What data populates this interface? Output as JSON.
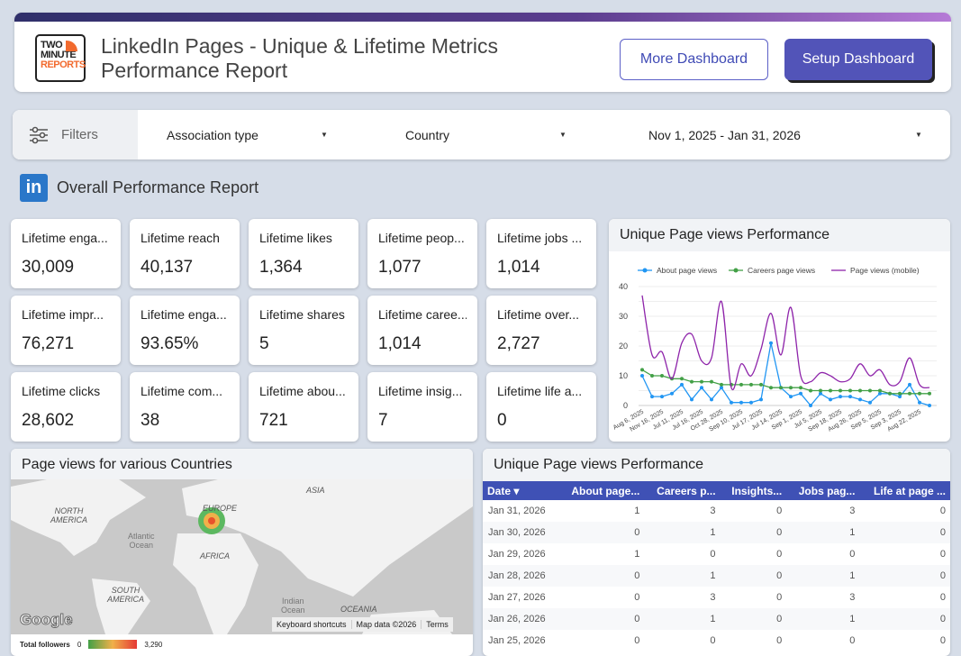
{
  "header": {
    "logo_lines": [
      "TWO",
      "MINUTE",
      "REPORTS"
    ],
    "title_line1": "LinkedIn Pages - Unique & Lifetime Metrics",
    "title_line2": "Performance Report",
    "more_label": "More Dashboard",
    "setup_label": "Setup Dashboard"
  },
  "filters": {
    "label": "Filters",
    "association": "Association type",
    "country": "Country",
    "date_range": "Nov 1, 2025 - Jan 31, 2026"
  },
  "section": {
    "icon": "linkedin-icon",
    "icon_text": "in",
    "title": "Overall Performance Report"
  },
  "kpis": [
    {
      "label": "Lifetime enga...",
      "value": "30,009"
    },
    {
      "label": "Lifetime reach",
      "value": "40,137"
    },
    {
      "label": "Lifetime likes",
      "value": "1,364"
    },
    {
      "label": "Lifetime peop...",
      "value": "1,077"
    },
    {
      "label": "Lifetime jobs ...",
      "value": "1,014"
    },
    {
      "label": "Lifetime impr...",
      "value": "76,271"
    },
    {
      "label": "Lifetime enga...",
      "value": "93.65%"
    },
    {
      "label": "Lifetime shares",
      "value": "5"
    },
    {
      "label": "Lifetime caree...",
      "value": "1,014"
    },
    {
      "label": "Lifetime over...",
      "value": "2,727"
    },
    {
      "label": "Lifetime clicks",
      "value": "28,602"
    },
    {
      "label": "Lifetime com...",
      "value": "38"
    },
    {
      "label": "Lifetime abou...",
      "value": "721"
    },
    {
      "label": "Lifetime insig...",
      "value": "7"
    },
    {
      "label": "Lifetime life a...",
      "value": "0"
    }
  ],
  "chart_data": {
    "type": "line",
    "title": "Unique Page views Performance",
    "ylim": [
      0,
      40
    ],
    "yticks": [
      0,
      10,
      20,
      30,
      40
    ],
    "grid": true,
    "legend": "top",
    "x_labels": [
      "Aug 6, 2025",
      "Nov 16, 2025",
      "Jul 11, 2025",
      "Jul 16, 2025",
      "Oct 28, 2025",
      "Sep 10, 2025",
      "Jul 17, 2025",
      "Jul 14, 2025",
      "Sep 1, 2025",
      "Jul 5, 2025",
      "Sep 18, 2025",
      "Aug 26, 2025",
      "Sep 5, 2025",
      "Sep 3, 2025",
      "Aug 22, 2025"
    ],
    "series": [
      {
        "name": "About page views",
        "color": "#2196f3",
        "markers": true,
        "values": [
          10,
          3,
          3,
          4,
          7,
          2,
          6,
          2,
          6,
          1,
          1,
          1,
          2,
          21,
          6,
          3,
          4,
          0,
          4,
          2,
          3,
          3,
          2,
          1,
          4,
          4,
          3,
          7,
          1,
          0
        ]
      },
      {
        "name": "Careers page views",
        "color": "#43a047",
        "markers": true,
        "values": [
          12,
          10,
          10,
          9,
          9,
          8,
          8,
          8,
          7,
          7,
          7,
          7,
          7,
          6,
          6,
          6,
          6,
          5,
          5,
          5,
          5,
          5,
          5,
          5,
          5,
          4,
          4,
          4,
          4,
          4
        ]
      },
      {
        "name": "Page views (mobile)",
        "color": "#8e24aa",
        "markers": false,
        "values": [
          37,
          17,
          18,
          9,
          21,
          24,
          15,
          16,
          35,
          6,
          14,
          10,
          19,
          31,
          17,
          33,
          10,
          8,
          11,
          10,
          8,
          9,
          14,
          10,
          12,
          7,
          8,
          16,
          7,
          6
        ]
      }
    ]
  },
  "map": {
    "title": "Page views for various Countries",
    "labels": {
      "asia": "ASIA",
      "europe": "EUROPE",
      "north_america": "NORTH\nAMERICA",
      "africa": "AFRICA",
      "south_america": "SOUTH\nAMERICA",
      "oceania": "OCEANIA",
      "atlantic": "Atlantic\nOcean",
      "indian": "Indian\nOcean"
    },
    "google": "Google",
    "shortcuts": "Keyboard shortcuts",
    "map_data": "Map data ©2026",
    "terms": "Terms",
    "legend_label": "Total followers",
    "legend_min": "0",
    "legend_max": "3,290"
  },
  "table": {
    "title": "Unique Page views Performance",
    "columns": [
      "Date ▾",
      "About page...",
      "Careers p...",
      "Insights...",
      "Jobs pag...",
      "Life at page ..."
    ],
    "rows": [
      [
        "Jan 31, 2026",
        "1",
        "3",
        "0",
        "3",
        "0"
      ],
      [
        "Jan 30, 2026",
        "0",
        "1",
        "0",
        "1",
        "0"
      ],
      [
        "Jan 29, 2026",
        "1",
        "0",
        "0",
        "0",
        "0"
      ],
      [
        "Jan 28, 2026",
        "0",
        "1",
        "0",
        "1",
        "0"
      ],
      [
        "Jan 27, 2026",
        "0",
        "3",
        "0",
        "3",
        "0"
      ],
      [
        "Jan 26, 2026",
        "0",
        "1",
        "0",
        "1",
        "0"
      ],
      [
        "Jan 25, 2026",
        "0",
        "0",
        "0",
        "0",
        "0"
      ]
    ]
  }
}
